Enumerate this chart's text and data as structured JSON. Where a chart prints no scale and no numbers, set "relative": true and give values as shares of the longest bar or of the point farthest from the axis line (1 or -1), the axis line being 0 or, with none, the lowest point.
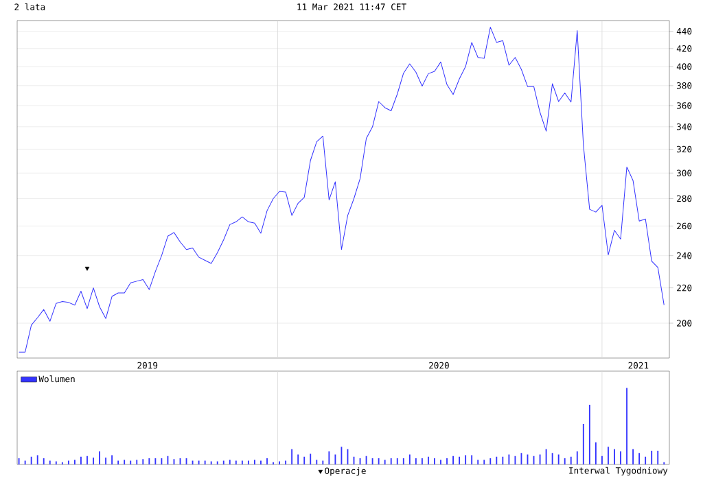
{
  "chart_data": [
    {
      "type": "line",
      "title": "2 lata",
      "subtitle": "11 Mar 2021 11:47 CET",
      "x": [
        "2019-03-15",
        "2019-03-22",
        "2019-03-29",
        "2019-04-05",
        "2019-04-12",
        "2019-04-19",
        "2019-04-26",
        "2019-05-03",
        "2019-05-10",
        "2019-05-17",
        "2019-05-24",
        "2019-05-31",
        "2019-06-07",
        "2019-06-14",
        "2019-06-21",
        "2019-06-28",
        "2019-07-05",
        "2019-07-12",
        "2019-07-19",
        "2019-07-26",
        "2019-08-02",
        "2019-08-09",
        "2019-08-16",
        "2019-08-23",
        "2019-08-30",
        "2019-09-06",
        "2019-09-13",
        "2019-09-20",
        "2019-09-27",
        "2019-10-04",
        "2019-10-11",
        "2019-10-18",
        "2019-10-25",
        "2019-11-01",
        "2019-11-08",
        "2019-11-15",
        "2019-11-22",
        "2019-11-29",
        "2019-12-06",
        "2019-12-13",
        "2019-12-20",
        "2019-12-27",
        "2020-01-03",
        "2020-01-10",
        "2020-01-17",
        "2020-01-24",
        "2020-01-31",
        "2020-02-07",
        "2020-02-14",
        "2020-02-21",
        "2020-02-28",
        "2020-03-06",
        "2020-03-13",
        "2020-03-20",
        "2020-03-27",
        "2020-04-03",
        "2020-04-10",
        "2020-04-17",
        "2020-04-24",
        "2020-05-01",
        "2020-05-08",
        "2020-05-15",
        "2020-05-22",
        "2020-05-29",
        "2020-06-05",
        "2020-06-12",
        "2020-06-19",
        "2020-06-26",
        "2020-07-03",
        "2020-07-10",
        "2020-07-17",
        "2020-07-24",
        "2020-07-31",
        "2020-08-07",
        "2020-08-14",
        "2020-08-21",
        "2020-08-28",
        "2020-09-04",
        "2020-09-11",
        "2020-09-18",
        "2020-09-25",
        "2020-10-02",
        "2020-10-09",
        "2020-10-16",
        "2020-10-23",
        "2020-10-30",
        "2020-11-06",
        "2020-11-13",
        "2020-11-20",
        "2020-11-27",
        "2020-12-04",
        "2020-12-11",
        "2020-12-18",
        "2020-12-25",
        "2021-01-01",
        "2021-01-08",
        "2021-01-15",
        "2021-01-22",
        "2021-01-29",
        "2021-02-05",
        "2021-02-12",
        "2021-02-19",
        "2021-02-26",
        "2021-03-05",
        "2021-03-12"
      ],
      "xlim": [
        "2019-03-13",
        "2021-03-18"
      ],
      "xticks": [
        {
          "value": "2019-08-07",
          "label": "2019"
        },
        {
          "value": "2020-07-01",
          "label": "2020"
        },
        {
          "value": "2021-02-11",
          "label": "2021"
        }
      ],
      "ylim": [
        182,
        453
      ],
      "yticks": [
        200,
        220,
        240,
        260,
        280,
        300,
        320,
        340,
        360,
        380,
        400,
        420,
        440
      ],
      "log": "y",
      "grid": "y",
      "legend": "bottom",
      "ref_lines": [
        {
          "axis": "x",
          "value": "2020-01-01",
          "color": "#d9d9d9"
        },
        {
          "axis": "x",
          "value": "2021-01-01",
          "color": "#d9d9d9"
        }
      ],
      "series": [
        {
          "color": "#3333ff",
          "values": [
            185,
            185,
            199,
            203,
            207.5,
            201,
            211,
            212,
            211.5,
            210,
            218,
            208,
            220,
            209,
            202.5,
            215,
            217,
            217,
            223,
            224,
            225,
            219,
            230,
            240,
            253,
            255.5,
            249,
            244,
            245,
            239,
            237,
            235,
            242,
            250.5,
            261,
            263,
            266.5,
            263,
            262,
            255,
            271,
            280,
            285.5,
            285,
            267.5,
            276.5,
            281,
            310.5,
            326.5,
            331.5,
            279,
            293,
            244,
            267.5,
            280,
            295.5,
            329.5,
            340,
            364,
            358,
            355,
            371.5,
            393,
            403,
            394,
            379.5,
            392.5,
            395,
            405,
            381,
            371,
            387,
            400,
            427,
            410,
            409,
            445,
            427,
            429,
            401.5,
            410,
            397,
            379,
            379,
            353.5,
            336,
            382,
            364,
            372.5,
            363.5,
            441,
            323.5,
            272,
            270,
            275,
            240.5,
            257,
            251,
            305,
            294,
            263.5,
            265,
            236.5,
            232.5,
            210
          ]
        },
        {
          "name": "Operacje",
          "type": "scatter",
          "marker": "triangle",
          "color": "#000000",
          "x": [
            "2019-05-31"
          ],
          "values": [
            232
          ]
        }
      ]
    },
    {
      "type": "bar",
      "relative": true,
      "legend": "top left",
      "x": [
        "2019-03-15",
        "2019-03-22",
        "2019-03-29",
        "2019-04-05",
        "2019-04-12",
        "2019-04-19",
        "2019-04-26",
        "2019-05-03",
        "2019-05-10",
        "2019-05-17",
        "2019-05-24",
        "2019-05-31",
        "2019-06-07",
        "2019-06-14",
        "2019-06-21",
        "2019-06-28",
        "2019-07-05",
        "2019-07-12",
        "2019-07-19",
        "2019-07-26",
        "2019-08-02",
        "2019-08-09",
        "2019-08-16",
        "2019-08-23",
        "2019-08-30",
        "2019-09-06",
        "2019-09-13",
        "2019-09-20",
        "2019-09-27",
        "2019-10-04",
        "2019-10-11",
        "2019-10-18",
        "2019-10-25",
        "2019-11-01",
        "2019-11-08",
        "2019-11-15",
        "2019-11-22",
        "2019-11-29",
        "2019-12-06",
        "2019-12-13",
        "2019-12-20",
        "2019-12-27",
        "2020-01-03",
        "2020-01-10",
        "2020-01-17",
        "2020-01-24",
        "2020-01-31",
        "2020-02-07",
        "2020-02-14",
        "2020-02-21",
        "2020-02-28",
        "2020-03-06",
        "2020-03-13",
        "2020-03-20",
        "2020-03-27",
        "2020-04-03",
        "2020-04-10",
        "2020-04-17",
        "2020-04-24",
        "2020-05-01",
        "2020-05-08",
        "2020-05-15",
        "2020-05-22",
        "2020-05-29",
        "2020-06-05",
        "2020-06-12",
        "2020-06-19",
        "2020-06-26",
        "2020-07-03",
        "2020-07-10",
        "2020-07-17",
        "2020-07-24",
        "2020-07-31",
        "2020-08-07",
        "2020-08-14",
        "2020-08-21",
        "2020-08-28",
        "2020-09-04",
        "2020-09-11",
        "2020-09-18",
        "2020-09-25",
        "2020-10-02",
        "2020-10-09",
        "2020-10-16",
        "2020-10-23",
        "2020-10-30",
        "2020-11-06",
        "2020-11-13",
        "2020-11-20",
        "2020-11-27",
        "2020-12-04",
        "2020-12-11",
        "2020-12-18",
        "2020-12-25",
        "2021-01-01",
        "2021-01-08",
        "2021-01-15",
        "2021-01-22",
        "2021-01-29",
        "2021-02-05",
        "2021-02-12",
        "2021-02-19",
        "2021-02-26",
        "2021-03-05",
        "2021-03-12"
      ],
      "xlim": [
        "2019-03-13",
        "2021-03-18"
      ],
      "ref_lines": [
        {
          "axis": "x",
          "value": "2020-01-01",
          "color": "#d9d9d9"
        },
        {
          "axis": "x",
          "value": "2021-01-01",
          "color": "#d9d9d9"
        }
      ],
      "annotations": [
        "Interwal Tygodniowy"
      ],
      "series": [
        {
          "name": "Wolumen",
          "color": "#3333ff",
          "values": [
            0.08,
            0.05,
            0.1,
            0.12,
            0.08,
            0.05,
            0.04,
            0.03,
            0.05,
            0.06,
            0.1,
            0.11,
            0.09,
            0.17,
            0.09,
            0.12,
            0.05,
            0.06,
            0.05,
            0.06,
            0.07,
            0.08,
            0.08,
            0.08,
            0.11,
            0.07,
            0.08,
            0.08,
            0.05,
            0.05,
            0.05,
            0.04,
            0.04,
            0.05,
            0.06,
            0.05,
            0.05,
            0.05,
            0.06,
            0.05,
            0.08,
            0.03,
            0.04,
            0.05,
            0.2,
            0.13,
            0.1,
            0.14,
            0.06,
            0.05,
            0.17,
            0.13,
            0.23,
            0.2,
            0.1,
            0.08,
            0.11,
            0.08,
            0.08,
            0.06,
            0.08,
            0.08,
            0.08,
            0.13,
            0.08,
            0.08,
            0.1,
            0.08,
            0.06,
            0.08,
            0.11,
            0.1,
            0.12,
            0.12,
            0.06,
            0.06,
            0.08,
            0.1,
            0.1,
            0.13,
            0.11,
            0.15,
            0.13,
            0.11,
            0.13,
            0.2,
            0.15,
            0.13,
            0.08,
            0.1,
            0.17,
            0.53,
            0.78,
            0.29,
            0.11,
            0.23,
            0.2,
            0.17,
            1,
            0.2,
            0.15,
            0.1,
            0.18,
            0.18,
            0.03
          ]
        }
      ]
    }
  ]
}
